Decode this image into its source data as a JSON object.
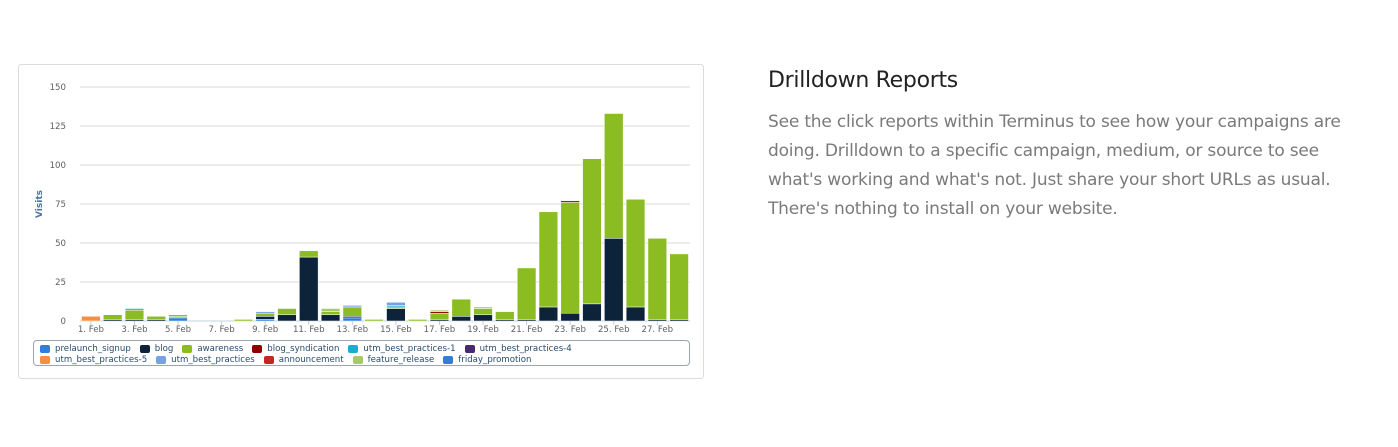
{
  "panel": {
    "title": "Drilldown Reports",
    "body": "See the click reports within Terminus to see how your campaigns are doing. Drilldown to a specific campaign, medium, or source to see what's working and what's not. Just share your short URLs as usual. There's nothing to install on your website."
  },
  "chart_data": {
    "type": "bar",
    "stacked": true,
    "ylabel": "Visits",
    "xlabel": "",
    "ylim": [
      0,
      150
    ],
    "yticks": [
      0,
      25,
      50,
      75,
      100,
      125,
      150
    ],
    "grid": true,
    "legend_position": "bottom",
    "categories": [
      "1. Feb",
      "2. Feb",
      "3. Feb",
      "4. Feb",
      "5. Feb",
      "6. Feb",
      "7. Feb",
      "8. Feb",
      "9. Feb",
      "10. Feb",
      "11. Feb",
      "12. Feb",
      "13. Feb",
      "14. Feb",
      "15. Feb",
      "16. Feb",
      "17. Feb",
      "18. Feb",
      "19. Feb",
      "20. Feb",
      "21. Feb",
      "22. Feb",
      "23. Feb",
      "24. Feb",
      "25. Feb",
      "26. Feb",
      "27. Feb",
      "28. Feb"
    ],
    "xtick_labels": [
      "1. Feb",
      "3. Feb",
      "5. Feb",
      "7. Feb",
      "9. Feb",
      "11. Feb",
      "13. Feb",
      "15. Feb",
      "17. Feb",
      "19. Feb",
      "21. Feb",
      "23. Feb",
      "25. Feb",
      "27. Feb"
    ],
    "series": [
      {
        "name": "prelaunch_signup",
        "color": "#2f7ed8",
        "values": [
          0,
          0,
          0,
          0,
          2,
          0,
          0,
          0,
          1,
          0,
          0,
          0,
          2,
          0,
          0,
          0,
          0,
          0,
          0,
          0,
          0,
          0,
          0,
          0,
          0,
          0,
          0,
          0
        ]
      },
      {
        "name": "blog",
        "color": "#0d233a",
        "values": [
          0,
          1,
          1,
          1,
          0,
          0,
          0,
          0,
          2,
          4,
          41,
          4,
          1,
          0,
          8,
          0,
          1,
          3,
          4,
          1,
          1,
          9,
          5,
          11,
          53,
          9,
          1,
          1
        ]
      },
      {
        "name": "awareness",
        "color": "#8bbc21",
        "values": [
          0,
          3,
          6,
          2,
          1,
          0,
          0,
          1,
          2,
          4,
          4,
          2,
          6,
          1,
          1,
          1,
          4,
          11,
          4,
          5,
          33,
          61,
          71,
          93,
          80,
          69,
          52,
          42
        ]
      },
      {
        "name": "blog_syndication",
        "color": "#910000",
        "values": [
          0,
          0,
          0,
          0,
          0,
          0,
          0,
          0,
          0,
          0,
          0,
          0,
          0,
          0,
          0,
          0,
          1,
          0,
          0,
          0,
          0,
          0,
          1,
          0,
          0,
          0,
          0,
          0
        ]
      },
      {
        "name": "utm_best_practices-1",
        "color": "#1aadce",
        "values": [
          0,
          0,
          1,
          0,
          0,
          0,
          0,
          0,
          0,
          0,
          0,
          0,
          0,
          0,
          1,
          0,
          0,
          0,
          0,
          0,
          0,
          0,
          0,
          0,
          0,
          0,
          0,
          0
        ]
      },
      {
        "name": "utm_best_practices-4",
        "color": "#492970",
        "values": [
          0,
          0,
          0,
          0,
          0,
          0,
          0,
          0,
          0,
          0,
          0,
          0,
          0,
          0,
          0,
          0,
          0,
          0,
          0,
          0,
          0,
          0,
          0,
          0,
          0,
          0,
          0,
          0
        ]
      },
      {
        "name": "utm_best_practices-5",
        "color": "#f28f43",
        "values": [
          3,
          0,
          0,
          0,
          0,
          0,
          0,
          0,
          0,
          0,
          0,
          0,
          0,
          0,
          0,
          0,
          0,
          0,
          0,
          0,
          0,
          0,
          0,
          0,
          0,
          0,
          0,
          0
        ]
      },
      {
        "name": "utm_best_practices",
        "color": "#77a1e5",
        "values": [
          0,
          0,
          0,
          0,
          1,
          0,
          0,
          0,
          1,
          0,
          0,
          0,
          1,
          0,
          2,
          0,
          0,
          0,
          0,
          0,
          0,
          0,
          0,
          0,
          0,
          0,
          0,
          0
        ]
      },
      {
        "name": "announcement",
        "color": "#c42525",
        "values": [
          0,
          0,
          0,
          0,
          0,
          0,
          0,
          0,
          0,
          0,
          0,
          0,
          0,
          0,
          0,
          0,
          0,
          0,
          0,
          0,
          0,
          0,
          0,
          0,
          0,
          0,
          0,
          0
        ]
      },
      {
        "name": "feature_release",
        "color": "#a6c96a",
        "values": [
          0,
          0,
          0,
          0,
          0,
          0,
          0,
          0,
          0,
          0,
          0,
          2,
          0,
          0,
          0,
          0,
          1,
          0,
          1,
          0,
          0,
          0,
          0,
          0,
          0,
          0,
          0,
          0
        ]
      },
      {
        "name": "friday_promotion",
        "color": "#2f7ed8",
        "values": [
          0,
          0,
          0,
          0,
          0,
          0,
          0,
          0,
          0,
          0,
          0,
          0,
          0,
          0,
          0,
          0,
          0,
          0,
          0,
          0,
          0,
          0,
          0,
          0,
          0,
          0,
          0,
          0
        ]
      }
    ]
  }
}
